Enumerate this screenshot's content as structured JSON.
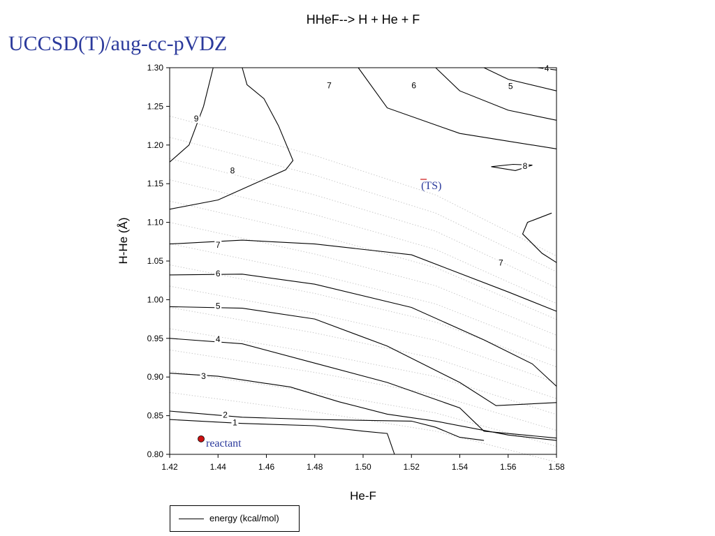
{
  "slide": {
    "title": "HHeF--> H + He + F",
    "method": "UCCSD(T)/aug-cc-pVDZ"
  },
  "chart_data": {
    "type": "contour",
    "xlabel": "He-F",
    "ylabel": "H-He (Å)",
    "xlim": [
      1.42,
      1.58
    ],
    "ylim": [
      0.8,
      1.3
    ],
    "x_ticks": [
      "1.42",
      "1.44",
      "1.46",
      "1.48",
      "1.50",
      "1.52",
      "1.54",
      "1.56",
      "1.58"
    ],
    "y_ticks": [
      "0.80",
      "0.85",
      "0.90",
      "0.95",
      "1.00",
      "1.05",
      "1.10",
      "1.15",
      "1.20",
      "1.25",
      "1.30"
    ],
    "legend": "energy (kcal/mol)",
    "contours": [
      {
        "level": "9",
        "label_at": [
          1.431,
          1.233
        ],
        "points": [
          [
            1.42,
            1.178
          ],
          [
            1.428,
            1.2
          ],
          [
            1.434,
            1.25
          ],
          [
            1.438,
            1.3
          ]
        ]
      },
      {
        "level": "8",
        "label_at": [
          1.446,
          1.166
        ],
        "points": [
          [
            1.42,
            1.117
          ],
          [
            1.44,
            1.129
          ],
          [
            1.455,
            1.15
          ],
          [
            1.468,
            1.168
          ],
          [
            1.471,
            1.18
          ],
          [
            1.465,
            1.225
          ],
          [
            1.459,
            1.26
          ],
          [
            1.452,
            1.278
          ],
          [
            1.45,
            1.3
          ]
        ]
      },
      {
        "level": "7",
        "label_at": [
          1.486,
          1.276
        ],
        "points": [
          [
            1.498,
            1.3
          ],
          [
            1.51,
            1.248
          ],
          [
            1.54,
            1.215
          ],
          [
            1.56,
            1.205
          ],
          [
            1.58,
            1.195
          ]
        ]
      },
      {
        "level": "6",
        "label_at": [
          1.521,
          1.276
        ],
        "points": [
          [
            1.53,
            1.3
          ],
          [
            1.54,
            1.27
          ],
          [
            1.56,
            1.245
          ],
          [
            1.58,
            1.232
          ]
        ]
      },
      {
        "level": "5",
        "label_at": [
          1.561,
          1.275
        ],
        "points": [
          [
            1.55,
            1.3
          ],
          [
            1.56,
            1.285
          ],
          [
            1.58,
            1.27
          ]
        ]
      },
      {
        "level": "4",
        "label_at": [
          1.576,
          1.298
        ],
        "points": [
          [
            1.572,
            1.3
          ],
          [
            1.58,
            1.297
          ]
        ]
      },
      {
        "level": "7",
        "label_at": [
          1.557,
          1.047
        ],
        "points": [
          [
            1.578,
            1.112
          ],
          [
            1.568,
            1.1
          ],
          [
            1.566,
            1.085
          ],
          [
            1.574,
            1.06
          ],
          [
            1.58,
            1.048
          ]
        ]
      },
      {
        "level": "8",
        "label_at": [
          1.567,
          1.172
        ],
        "points": [
          [
            1.553,
            1.172
          ],
          [
            1.562,
            1.175
          ],
          [
            1.57,
            1.174
          ],
          [
            1.563,
            1.167
          ],
          [
            1.553,
            1.172
          ]
        ]
      },
      {
        "level": "7",
        "label_at": [
          1.44,
          1.07
        ],
        "points": [
          [
            1.42,
            1.072
          ],
          [
            1.45,
            1.077
          ],
          [
            1.48,
            1.072
          ],
          [
            1.52,
            1.058
          ],
          [
            1.56,
            1.01
          ],
          [
            1.58,
            0.985
          ]
        ]
      },
      {
        "level": "6",
        "label_at": [
          1.44,
          1.033
        ],
        "points": [
          [
            1.42,
            1.032
          ],
          [
            1.45,
            1.033
          ],
          [
            1.48,
            1.02
          ],
          [
            1.52,
            0.99
          ],
          [
            1.55,
            0.948
          ],
          [
            1.57,
            0.917
          ],
          [
            1.58,
            0.888
          ]
        ]
      },
      {
        "level": "5",
        "label_at": [
          1.44,
          0.991
        ],
        "points": [
          [
            1.42,
            0.991
          ],
          [
            1.45,
            0.989
          ],
          [
            1.48,
            0.975
          ],
          [
            1.51,
            0.94
          ],
          [
            1.54,
            0.893
          ],
          [
            1.555,
            0.863
          ],
          [
            1.58,
            0.867
          ]
        ]
      },
      {
        "level": "4",
        "label_at": [
          1.44,
          0.948
        ],
        "points": [
          [
            1.42,
            0.95
          ],
          [
            1.45,
            0.943
          ],
          [
            1.48,
            0.918
          ],
          [
            1.51,
            0.893
          ],
          [
            1.54,
            0.86
          ],
          [
            1.55,
            0.83
          ],
          [
            1.58,
            0.821
          ]
        ]
      },
      {
        "level": "3",
        "label_at": [
          1.434,
          0.9
        ],
        "points": [
          [
            1.42,
            0.905
          ],
          [
            1.44,
            0.901
          ],
          [
            1.47,
            0.887
          ],
          [
            1.49,
            0.868
          ],
          [
            1.51,
            0.852
          ],
          [
            1.53,
            0.843
          ],
          [
            1.56,
            0.825
          ],
          [
            1.58,
            0.818
          ]
        ]
      },
      {
        "level": "2",
        "label_at": [
          1.443,
          0.85
        ],
        "points": [
          [
            1.42,
            0.856
          ],
          [
            1.45,
            0.848
          ],
          [
            1.48,
            0.845
          ],
          [
            1.52,
            0.843
          ],
          [
            1.53,
            0.835
          ],
          [
            1.54,
            0.822
          ],
          [
            1.55,
            0.818
          ]
        ]
      },
      {
        "level": "1",
        "label_at": [
          1.447,
          0.84
        ],
        "points": [
          [
            1.42,
            0.845
          ],
          [
            1.45,
            0.84
          ],
          [
            1.48,
            0.837
          ],
          [
            1.5,
            0.83
          ],
          [
            1.51,
            0.827
          ],
          [
            1.513,
            0.8
          ]
        ]
      }
    ],
    "points": [
      {
        "label": "reactant",
        "x": 1.433,
        "y": 0.82,
        "color": "#cc1111"
      }
    ],
    "annotations": [
      {
        "text": "(TS)",
        "x": 1.524,
        "y": 1.143
      }
    ]
  }
}
